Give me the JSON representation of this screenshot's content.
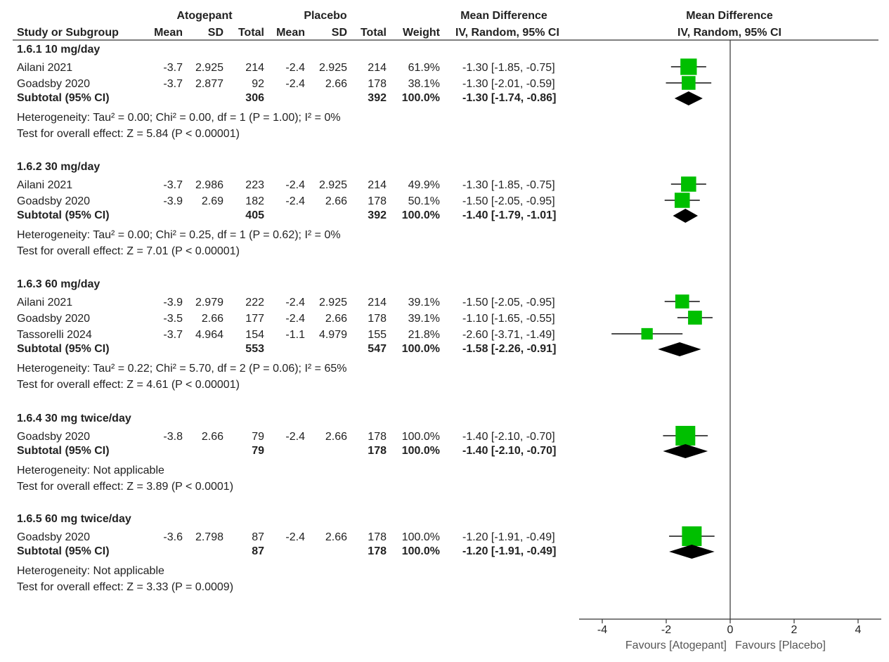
{
  "header": {
    "group1": "Atogepant",
    "group2": "Placebo",
    "effect_title": "Mean Difference",
    "plot_title": "Mean Difference",
    "cols": {
      "study": "Study or Subgroup",
      "mean1": "Mean",
      "sd1": "SD",
      "total1": "Total",
      "mean2": "Mean",
      "sd2": "SD",
      "total2": "Total",
      "weight": "Weight",
      "ci": "IV, Random, 95% CI",
      "plot_ci": "IV, Random, 95% CI"
    }
  },
  "chart_data": {
    "type": "forest",
    "xlim": [
      -4,
      4
    ],
    "xticks": [
      "-4",
      "-2",
      "0",
      "2",
      "4"
    ],
    "xlabel_left": "Favours [Atogepant]",
    "xlabel_right": "Favours [Placebo]",
    "marker_color": "#00bf00",
    "groups": [
      {
        "title": "1.6.1 10 mg/day",
        "studies": [
          {
            "name": "Ailani 2021",
            "m1": "-3.7",
            "sd1": "2.925",
            "n1": "214",
            "m2": "-2.4",
            "sd2": "2.925",
            "n2": "214",
            "w": "61.9%",
            "ci": "-1.30 [-1.85, -0.75]",
            "est": -1.3,
            "lo": -1.85,
            "hi": -0.75,
            "weight": 61.9
          },
          {
            "name": "Goadsby 2020",
            "m1": "-3.7",
            "sd1": "2.877",
            "n1": "92",
            "m2": "-2.4",
            "sd2": "2.66",
            "n2": "178",
            "w": "38.1%",
            "ci": "-1.30 [-2.01, -0.59]",
            "est": -1.3,
            "lo": -2.01,
            "hi": -0.59,
            "weight": 38.1
          }
        ],
        "subtotal": {
          "label": "Subtotal (95% CI)",
          "n1": "306",
          "n2": "392",
          "w": "100.0%",
          "ci": "-1.30 [-1.74, -0.86]",
          "est": -1.3,
          "lo": -1.74,
          "hi": -0.86
        },
        "heterogeneity": "Heterogeneity: Tau² = 0.00; Chi² = 0.00, df = 1 (P = 1.00); I² = 0%",
        "overall": "Test for overall effect: Z = 5.84 (P < 0.00001)"
      },
      {
        "title": "1.6.2 30 mg/day",
        "studies": [
          {
            "name": "Ailani 2021",
            "m1": "-3.7",
            "sd1": "2.986",
            "n1": "223",
            "m2": "-2.4",
            "sd2": "2.925",
            "n2": "214",
            "w": "49.9%",
            "ci": "-1.30 [-1.85, -0.75]",
            "est": -1.3,
            "lo": -1.85,
            "hi": -0.75,
            "weight": 49.9
          },
          {
            "name": "Goadsby 2020",
            "m1": "-3.9",
            "sd1": "2.69",
            "n1": "182",
            "m2": "-2.4",
            "sd2": "2.66",
            "n2": "178",
            "w": "50.1%",
            "ci": "-1.50 [-2.05, -0.95]",
            "est": -1.5,
            "lo": -2.05,
            "hi": -0.95,
            "weight": 50.1
          }
        ],
        "subtotal": {
          "label": "Subtotal (95% CI)",
          "n1": "405",
          "n2": "392",
          "w": "100.0%",
          "ci": "-1.40 [-1.79, -1.01]",
          "est": -1.4,
          "lo": -1.79,
          "hi": -1.01
        },
        "heterogeneity": "Heterogeneity: Tau² = 0.00; Chi² = 0.25, df = 1 (P = 0.62); I² = 0%",
        "overall": "Test for overall effect: Z = 7.01 (P < 0.00001)"
      },
      {
        "title": "1.6.3 60 mg/day",
        "studies": [
          {
            "name": "Ailani 2021",
            "m1": "-3.9",
            "sd1": "2.979",
            "n1": "222",
            "m2": "-2.4",
            "sd2": "2.925",
            "n2": "214",
            "w": "39.1%",
            "ci": "-1.50 [-2.05, -0.95]",
            "est": -1.5,
            "lo": -2.05,
            "hi": -0.95,
            "weight": 39.1
          },
          {
            "name": "Goadsby 2020",
            "m1": "-3.5",
            "sd1": "2.66",
            "n1": "177",
            "m2": "-2.4",
            "sd2": "2.66",
            "n2": "178",
            "w": "39.1%",
            "ci": "-1.10 [-1.65, -0.55]",
            "est": -1.1,
            "lo": -1.65,
            "hi": -0.55,
            "weight": 39.1
          },
          {
            "name": "Tassorelli 2024",
            "m1": "-3.7",
            "sd1": "4.964",
            "n1": "154",
            "m2": "-1.1",
            "sd2": "4.979",
            "n2": "155",
            "w": "21.8%",
            "ci": "-2.60 [-3.71, -1.49]",
            "est": -2.6,
            "lo": -3.71,
            "hi": -1.49,
            "weight": 21.8
          }
        ],
        "subtotal": {
          "label": "Subtotal (95% CI)",
          "n1": "553",
          "n2": "547",
          "w": "100.0%",
          "ci": "-1.58 [-2.26, -0.91]",
          "est": -1.58,
          "lo": -2.26,
          "hi": -0.91
        },
        "heterogeneity": "Heterogeneity: Tau² = 0.22; Chi² = 5.70, df = 2 (P = 0.06); I² = 65%",
        "overall": "Test for overall effect: Z = 4.61 (P < 0.00001)"
      },
      {
        "title": "1.6.4 30 mg twice/day",
        "studies": [
          {
            "name": "Goadsby 2020",
            "m1": "-3.8",
            "sd1": "2.66",
            "n1": "79",
            "m2": "-2.4",
            "sd2": "2.66",
            "n2": "178",
            "w": "100.0%",
            "ci": "-1.40 [-2.10, -0.70]",
            "est": -1.4,
            "lo": -2.1,
            "hi": -0.7,
            "weight": 100.0
          }
        ],
        "subtotal": {
          "label": "Subtotal (95% CI)",
          "n1": "79",
          "n2": "178",
          "w": "100.0%",
          "ci": "-1.40 [-2.10, -0.70]",
          "est": -1.4,
          "lo": -2.1,
          "hi": -0.7
        },
        "heterogeneity": "Heterogeneity: Not applicable",
        "overall": "Test for overall effect: Z = 3.89 (P < 0.0001)"
      },
      {
        "title": "1.6.5 60 mg twice/day",
        "studies": [
          {
            "name": "Goadsby 2020",
            "m1": "-3.6",
            "sd1": "2.798",
            "n1": "87",
            "m2": "-2.4",
            "sd2": "2.66",
            "n2": "178",
            "w": "100.0%",
            "ci": "-1.20 [-1.91, -0.49]",
            "est": -1.2,
            "lo": -1.91,
            "hi": -0.49,
            "weight": 100.0
          }
        ],
        "subtotal": {
          "label": "Subtotal (95% CI)",
          "n1": "87",
          "n2": "178",
          "w": "100.0%",
          "ci": "-1.20 [-1.91, -0.49]",
          "est": -1.2,
          "lo": -1.91,
          "hi": -0.49
        },
        "heterogeneity": "Heterogeneity: Not applicable",
        "overall": "Test for overall effect: Z = 3.33 (P = 0.0009)"
      }
    ]
  }
}
